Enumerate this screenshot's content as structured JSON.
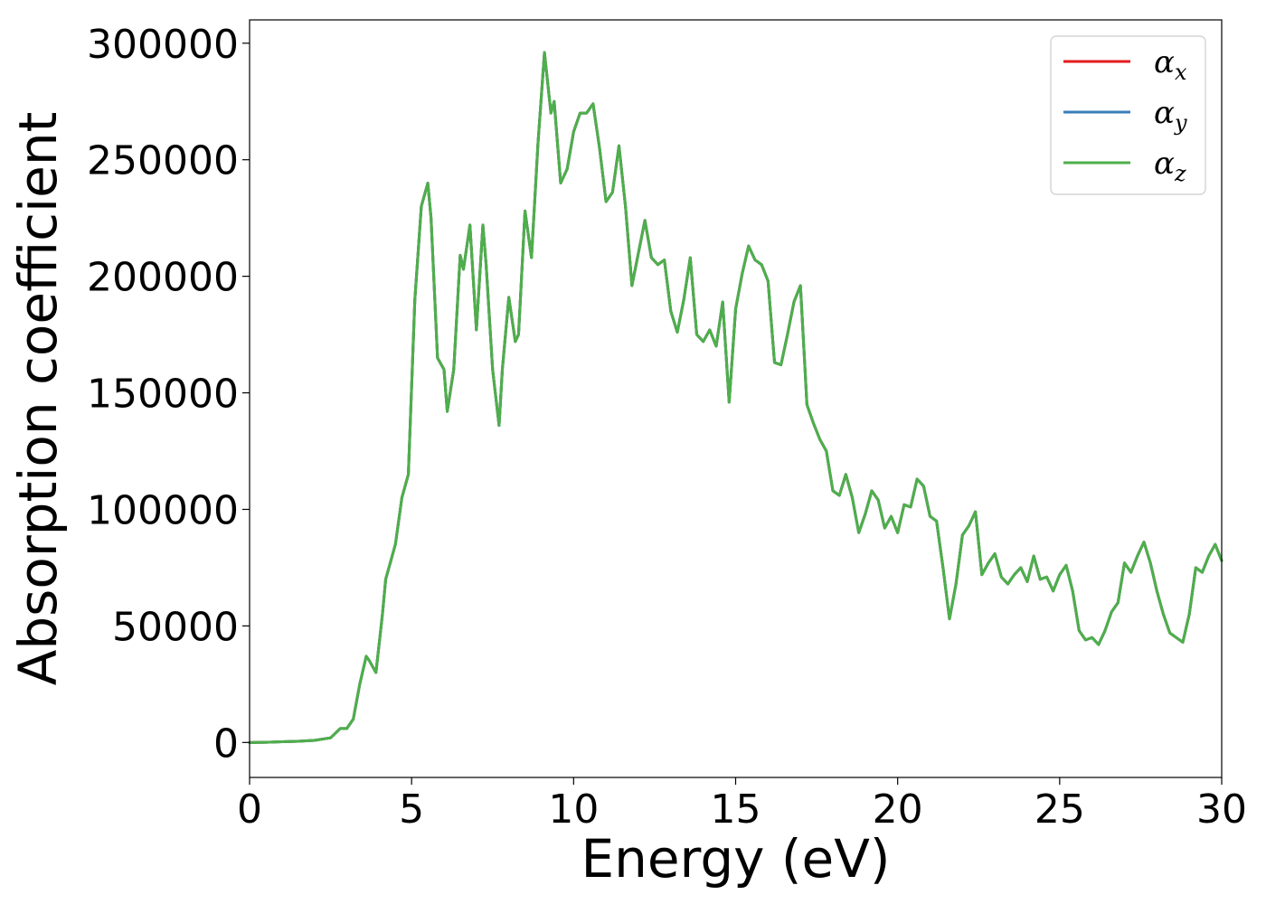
{
  "colors": {
    "alpha_x": "#e41a1c",
    "alpha_y": "#377eb8",
    "alpha_z": "#4daf4a"
  },
  "chart_data": {
    "type": "line",
    "title": "",
    "xlabel": "Energy (eV)",
    "ylabel": "Absorption coefficient",
    "xlim": [
      0,
      30
    ],
    "ylim": [
      -15000,
      310000
    ],
    "xticks": [
      0,
      5,
      10,
      15,
      20,
      25,
      30
    ],
    "yticks": [
      0,
      50000,
      100000,
      150000,
      200000,
      250000,
      300000
    ],
    "grid": false,
    "legend_position": "top-right",
    "legend": [
      {
        "symbol": "α",
        "sub": "x",
        "color": "#e41a1c"
      },
      {
        "symbol": "α",
        "sub": "y",
        "color": "#377eb8"
      },
      {
        "symbol": "α",
        "sub": "z",
        "color": "#4daf4a"
      }
    ],
    "x": [
      0,
      0.5,
      1,
      1.5,
      2,
      2.5,
      2.8,
      3.0,
      3.2,
      3.4,
      3.6,
      3.7,
      3.9,
      4.1,
      4.2,
      4.4,
      4.5,
      4.7,
      4.9,
      5.1,
      5.3,
      5.5,
      5.6,
      5.8,
      6.0,
      6.1,
      6.3,
      6.5,
      6.6,
      6.8,
      7.0,
      7.2,
      7.3,
      7.5,
      7.7,
      7.8,
      8.0,
      8.2,
      8.3,
      8.5,
      8.7,
      8.9,
      9.1,
      9.3,
      9.4,
      9.6,
      9.8,
      10.0,
      10.2,
      10.4,
      10.6,
      10.8,
      11.0,
      11.2,
      11.4,
      11.6,
      11.8,
      12.0,
      12.2,
      12.4,
      12.6,
      12.8,
      13.0,
      13.2,
      13.4,
      13.6,
      13.8,
      14.0,
      14.2,
      14.4,
      14.6,
      14.8,
      15.0,
      15.2,
      15.4,
      15.6,
      15.8,
      16.0,
      16.2,
      16.4,
      16.6,
      16.8,
      17.0,
      17.2,
      17.4,
      17.6,
      17.8,
      18.0,
      18.2,
      18.4,
      18.6,
      18.8,
      19.0,
      19.2,
      19.4,
      19.6,
      19.8,
      20.0,
      20.2,
      20.4,
      20.6,
      20.8,
      21.0,
      21.2,
      21.4,
      21.6,
      21.8,
      22.0,
      22.2,
      22.4,
      22.6,
      22.8,
      23.0,
      23.2,
      23.4,
      23.6,
      23.8,
      24.0,
      24.2,
      24.4,
      24.6,
      24.8,
      25.0,
      25.2,
      25.4,
      25.6,
      25.8,
      26.0,
      26.2,
      26.4,
      26.6,
      26.8,
      27.0,
      27.2,
      27.4,
      27.6,
      27.8,
      28.0,
      28.2,
      28.4,
      28.6,
      28.8,
      29.0,
      29.2,
      29.4,
      29.6,
      29.8,
      30.0
    ],
    "series": [
      {
        "name": "α_x",
        "values": [
          0,
          100,
          300,
          500,
          900,
          2000,
          6000,
          6000,
          10000,
          25000,
          37000,
          35000,
          30000,
          55000,
          70000,
          80000,
          85000,
          105000,
          115000,
          190000,
          230000,
          240000,
          225000,
          165000,
          160000,
          142000,
          160000,
          209000,
          203000,
          222000,
          177000,
          222000,
          205000,
          160000,
          136000,
          160000,
          191000,
          172000,
          175000,
          228000,
          208000,
          257000,
          296000,
          270000,
          275000,
          240000,
          246000,
          262000,
          270000,
          270000,
          274000,
          255000,
          232000,
          236000,
          256000,
          230000,
          196000,
          210000,
          224000,
          208000,
          205000,
          207000,
          185000,
          176000,
          190000,
          208000,
          175000,
          172000,
          177000,
          170000,
          189000,
          146000,
          186000,
          201000,
          213000,
          207000,
          205000,
          198000,
          163000,
          162000,
          175000,
          189000,
          196000,
          145000,
          137000,
          130000,
          125000,
          108000,
          106000,
          115000,
          105000,
          90000,
          98000,
          108000,
          104000,
          92000,
          97000,
          90000,
          102000,
          101000,
          113000,
          110000,
          97000,
          95000,
          75000,
          53000,
          68000,
          89000,
          93000,
          99000,
          72000,
          77000,
          81000,
          71000,
          68000,
          72000,
          75000,
          69000,
          80000,
          70000,
          71000,
          65000,
          72000,
          76000,
          65000,
          48000,
          44000,
          45000,
          42000,
          48000,
          56000,
          60000,
          77000,
          73000,
          80000,
          86000,
          77000,
          65000,
          55000,
          47000,
          45000,
          43000,
          55000,
          75000,
          73000,
          80000,
          85000,
          78000
        ]
      },
      {
        "name": "α_y",
        "values": [
          0,
          100,
          300,
          500,
          900,
          2000,
          6000,
          6000,
          10000,
          25000,
          37000,
          35000,
          30000,
          55000,
          70000,
          80000,
          85000,
          105000,
          115000,
          190000,
          230000,
          240000,
          225000,
          165000,
          160000,
          142000,
          160000,
          209000,
          203000,
          222000,
          177000,
          222000,
          205000,
          160000,
          136000,
          160000,
          191000,
          172000,
          175000,
          228000,
          208000,
          257000,
          296000,
          270000,
          275000,
          240000,
          246000,
          262000,
          270000,
          270000,
          274000,
          255000,
          232000,
          236000,
          256000,
          230000,
          196000,
          210000,
          224000,
          208000,
          205000,
          207000,
          185000,
          176000,
          190000,
          208000,
          175000,
          172000,
          177000,
          170000,
          189000,
          146000,
          186000,
          201000,
          213000,
          207000,
          205000,
          198000,
          163000,
          162000,
          175000,
          189000,
          196000,
          145000,
          137000,
          130000,
          125000,
          108000,
          106000,
          115000,
          105000,
          90000,
          98000,
          108000,
          104000,
          92000,
          97000,
          90000,
          102000,
          101000,
          113000,
          110000,
          97000,
          95000,
          75000,
          53000,
          68000,
          89000,
          93000,
          99000,
          72000,
          77000,
          81000,
          71000,
          68000,
          72000,
          75000,
          69000,
          80000,
          70000,
          71000,
          65000,
          72000,
          76000,
          65000,
          48000,
          44000,
          45000,
          42000,
          48000,
          56000,
          60000,
          77000,
          73000,
          80000,
          86000,
          77000,
          65000,
          55000,
          47000,
          45000,
          43000,
          55000,
          75000,
          73000,
          80000,
          85000,
          78000
        ]
      },
      {
        "name": "α_z",
        "values": [
          0,
          100,
          300,
          500,
          900,
          2000,
          6000,
          6000,
          10000,
          25000,
          37000,
          35000,
          30000,
          55000,
          70000,
          80000,
          85000,
          105000,
          115000,
          190000,
          230000,
          240000,
          225000,
          165000,
          160000,
          142000,
          160000,
          209000,
          203000,
          222000,
          177000,
          222000,
          205000,
          160000,
          136000,
          160000,
          191000,
          172000,
          175000,
          228000,
          208000,
          257000,
          296000,
          270000,
          275000,
          240000,
          246000,
          262000,
          270000,
          270000,
          274000,
          255000,
          232000,
          236000,
          256000,
          230000,
          196000,
          210000,
          224000,
          208000,
          205000,
          207000,
          185000,
          176000,
          190000,
          208000,
          175000,
          172000,
          177000,
          170000,
          189000,
          146000,
          186000,
          201000,
          213000,
          207000,
          205000,
          198000,
          163000,
          162000,
          175000,
          189000,
          196000,
          145000,
          137000,
          130000,
          125000,
          108000,
          106000,
          115000,
          105000,
          90000,
          98000,
          108000,
          104000,
          92000,
          97000,
          90000,
          102000,
          101000,
          113000,
          110000,
          97000,
          95000,
          75000,
          53000,
          68000,
          89000,
          93000,
          99000,
          72000,
          77000,
          81000,
          71000,
          68000,
          72000,
          75000,
          69000,
          80000,
          70000,
          71000,
          65000,
          72000,
          76000,
          65000,
          48000,
          44000,
          45000,
          42000,
          48000,
          56000,
          60000,
          77000,
          73000,
          80000,
          86000,
          77000,
          65000,
          55000,
          47000,
          45000,
          43000,
          55000,
          75000,
          73000,
          80000,
          85000,
          78000
        ]
      }
    ]
  }
}
